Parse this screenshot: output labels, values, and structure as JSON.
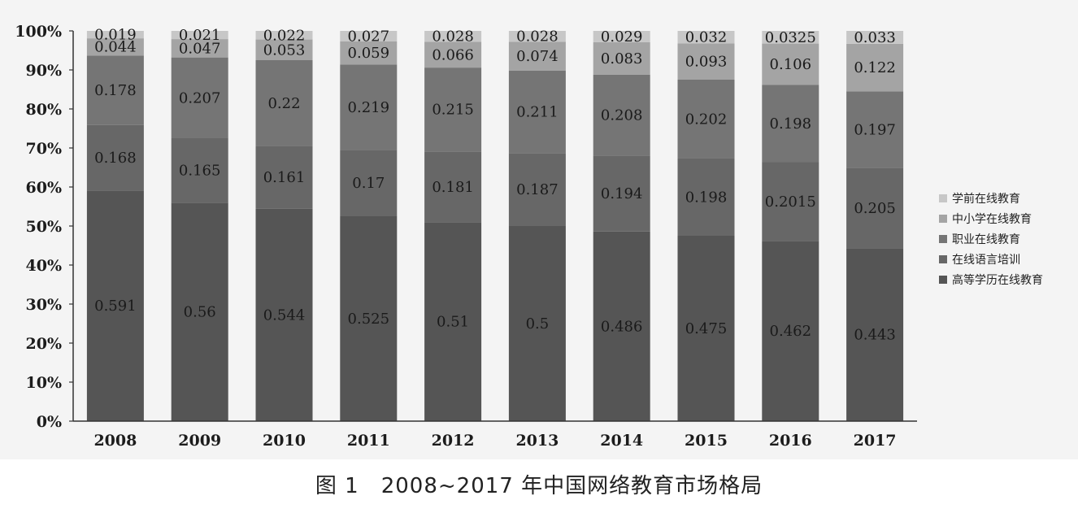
{
  "caption": "图 1　2008~2017 年中国网络教育市场格局",
  "chart_data": {
    "type": "bar",
    "stacked": true,
    "categories": [
      "2008",
      "2009",
      "2010",
      "2011",
      "2012",
      "2013",
      "2014",
      "2015",
      "2016",
      "2017"
    ],
    "yticks": [
      "0%",
      "10%",
      "20%",
      "30%",
      "40%",
      "50%",
      "60%",
      "70%",
      "80%",
      "90%",
      "100%"
    ],
    "ylim": [
      0,
      1
    ],
    "grid": false,
    "legend_position": "right",
    "series": [
      {
        "name": "高等学历在线教育",
        "color": "#555555",
        "values": [
          0.591,
          0.56,
          0.544,
          0.525,
          0.51,
          0.5,
          0.486,
          0.475,
          0.462,
          0.443
        ],
        "labels": [
          "0.591",
          "0.56",
          "0.544",
          "0.525",
          "0.51",
          "0.5",
          "0.486",
          "0.475",
          "0.462",
          "0.443"
        ]
      },
      {
        "name": "在线语言培训",
        "color": "#676767",
        "values": [
          0.168,
          0.165,
          0.161,
          0.17,
          0.181,
          0.187,
          0.194,
          0.198,
          0.2015,
          0.205
        ],
        "labels": [
          "0.168",
          "0.165",
          "0.161",
          "0.17",
          "0.181",
          "0.187",
          "0.194",
          "0.198",
          "0.2015",
          "0.205"
        ]
      },
      {
        "name": "职业在线教育",
        "color": "#757575",
        "values": [
          0.178,
          0.207,
          0.22,
          0.219,
          0.215,
          0.211,
          0.208,
          0.202,
          0.198,
          0.197
        ],
        "labels": [
          "0.178",
          "0.207",
          "0.22",
          "0.219",
          "0.215",
          "0.211",
          "0.208",
          "0.202",
          "0.198",
          "0.197"
        ]
      },
      {
        "name": "中小学在线教育",
        "color": "#a4a4a4",
        "values": [
          0.044,
          0.047,
          0.053,
          0.059,
          0.066,
          0.074,
          0.083,
          0.093,
          0.106,
          0.122
        ],
        "labels": [
          "0.044",
          "0.047",
          "0.053",
          "0.059",
          "0.066",
          "0.074",
          "0.083",
          "0.093",
          "0.106",
          "0.122"
        ]
      },
      {
        "name": "学前在线教育",
        "color": "#c7c7c7",
        "values": [
          0.019,
          0.021,
          0.022,
          0.027,
          0.028,
          0.028,
          0.029,
          0.032,
          0.0325,
          0.033
        ],
        "labels": [
          "0.019",
          "0.021",
          "0.022",
          "0.027",
          "0.028",
          "0.028",
          "0.029",
          "0.032",
          "0.0325",
          "0.033"
        ]
      }
    ],
    "legend_order": [
      "学前在线教育",
      "中小学在线教育",
      "职业在线教育",
      "在线语言培训",
      "高等学历在线教育"
    ]
  }
}
